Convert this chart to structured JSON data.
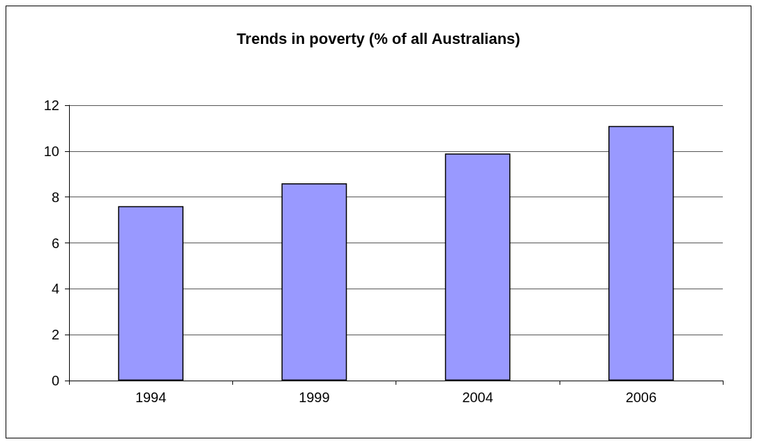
{
  "chart_data": {
    "type": "bar",
    "title": "Trends in poverty (% of all Australians)",
    "categories": [
      "1994",
      "1999",
      "2004",
      "2006"
    ],
    "values": [
      7.6,
      8.6,
      9.9,
      11.1
    ],
    "color": "#9999ff",
    "ylim": [
      0,
      12
    ],
    "yticks": [
      0,
      2,
      4,
      6,
      8,
      10,
      12
    ],
    "grid": "y"
  }
}
